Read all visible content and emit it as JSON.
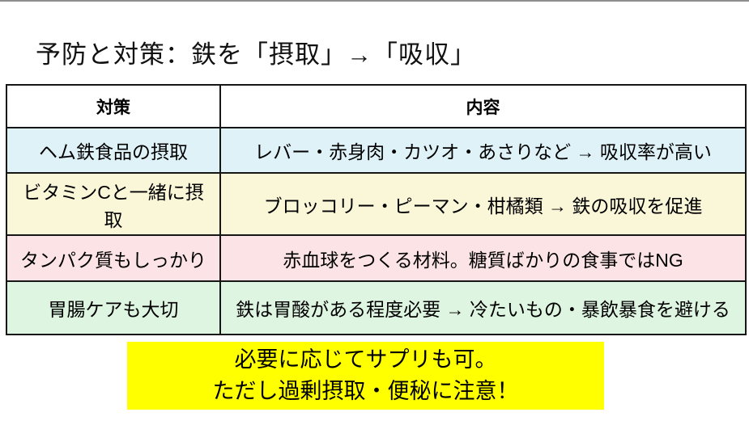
{
  "slide": {
    "title": "予防と対策：鉄を「摂取」→「吸収」"
  },
  "table": {
    "headers": {
      "measure": "対策",
      "content": "内容"
    },
    "rows": [
      {
        "measure": "ヘム鉄食品の摂取",
        "content": "レバー・赤身肉・カツオ・あさりなど → 吸収率が高い",
        "bg": "#dff2f8"
      },
      {
        "measure": "ビタミンCと一緒に摂取",
        "content": "ブロッコリー・ピーマン・柑橘類 → 鉄の吸収を促進",
        "bg": "#faf6d8"
      },
      {
        "measure": "タンパク質もしっかり",
        "content": "赤血球をつくる材料。糖質ばかりの食事ではNG",
        "bg": "#fce4e6"
      },
      {
        "measure": "胃腸ケアも大切",
        "content": "鉄は胃酸がある程度必要 → 冷たいもの・暴飲暴食を避ける",
        "bg": "#def5e1"
      }
    ]
  },
  "note": {
    "line1": "必要に応じてサプリも可。",
    "line2": "ただし過剰摂取・便秘に注意！",
    "bg": "#ffff00",
    "text_color": "#000000"
  },
  "colors": {
    "top_line": "#8f8f8f",
    "table_border": "#161616",
    "title_text": "#111111",
    "page_bg": "#ffffff"
  }
}
